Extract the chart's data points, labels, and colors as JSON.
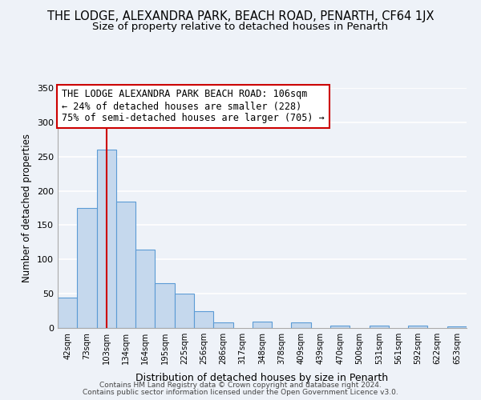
{
  "title": "THE LODGE, ALEXANDRA PARK, BEACH ROAD, PENARTH, CF64 1JX",
  "subtitle": "Size of property relative to detached houses in Penarth",
  "xlabel": "Distribution of detached houses by size in Penarth",
  "ylabel": "Number of detached properties",
  "footer_line1": "Contains HM Land Registry data © Crown copyright and database right 2024.",
  "footer_line2": "Contains public sector information licensed under the Open Government Licence v3.0.",
  "bin_labels": [
    "42sqm",
    "73sqm",
    "103sqm",
    "134sqm",
    "164sqm",
    "195sqm",
    "225sqm",
    "256sqm",
    "286sqm",
    "317sqm",
    "348sqm",
    "378sqm",
    "409sqm",
    "439sqm",
    "470sqm",
    "500sqm",
    "531sqm",
    "561sqm",
    "592sqm",
    "622sqm",
    "653sqm"
  ],
  "bar_heights": [
    44,
    175,
    260,
    184,
    114,
    65,
    50,
    25,
    8,
    0,
    9,
    0,
    8,
    0,
    3,
    0,
    4,
    0,
    3,
    0,
    2
  ],
  "bar_color": "#c5d8ed",
  "bar_edge_color": "#5b9bd5",
  "red_line_x": 2,
  "red_line_color": "#cc0000",
  "annotation_line1": "THE LODGE ALEXANDRA PARK BEACH ROAD: 106sqm",
  "annotation_line2": "← 24% of detached houses are smaller (228)",
  "annotation_line3": "75% of semi-detached houses are larger (705) →",
  "annotation_fontsize": 8.5,
  "ylim": [
    0,
    350
  ],
  "yticks": [
    0,
    50,
    100,
    150,
    200,
    250,
    300,
    350
  ],
  "bg_color": "#eef2f8",
  "grid_color": "#ffffff",
  "title_fontsize": 10.5,
  "subtitle_fontsize": 9.5
}
